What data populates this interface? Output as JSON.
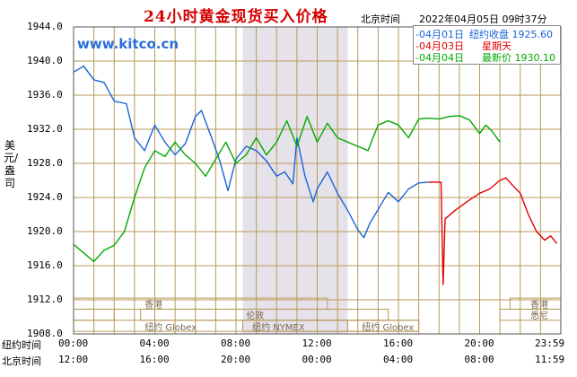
{
  "header": {
    "title": "24小时黄金现货买入价格",
    "beijing_label": "北京时间",
    "timestamp": "2022年04月05日 09时37分",
    "watermark": "www.kitco.cn"
  },
  "legend": [
    {
      "date": "-04月01日",
      "label": "纽约收盘 1925.60",
      "color": "#1a63d6"
    },
    {
      "date": "-04月03日",
      "label": "星期天",
      "color": "#e00000"
    },
    {
      "date": "-04月04日",
      "label": "最新价 1930.10",
      "color": "#00aa00"
    }
  ],
  "axis": {
    "ylabel": "美元/盎司",
    "y_ticks": [
      "1944.0",
      "1940.0",
      "1936.0",
      "1932.0",
      "1928.0",
      "1924.0",
      "1920.0",
      "1916.0",
      "1912.0",
      "1908.0"
    ],
    "x_row1_label": "纽约时间",
    "x_row2_label": "北京时间",
    "x_ticks_ny": [
      "00:00",
      "04:00",
      "08:00",
      "12:00",
      "16:00",
      "20:00",
      "23:59"
    ],
    "x_ticks_bj": [
      "12:00",
      "16:00",
      "20:00",
      "00:00",
      "04:00",
      "08:00",
      "11:59"
    ]
  },
  "markets": {
    "hongkong1": "香港",
    "hongkong2": "香港",
    "london": "伦敦",
    "ny_globex1": "纽约 Globex",
    "ny_nymex": "纽约 NYMEX",
    "ny_globex2": "纽约 Globex",
    "sydney": "悉尼"
  },
  "chart_data": {
    "type": "line",
    "xlabel": "纽约时间",
    "ylabel": "美元/盎司",
    "ylim": [
      1908,
      1944
    ],
    "x_unit": "hours (New York time)",
    "series": [
      {
        "name": "04月01日",
        "color": "#1a63d6",
        "points": [
          [
            0,
            1938.7
          ],
          [
            0.5,
            1939.4
          ],
          [
            1,
            1937.8
          ],
          [
            1.5,
            1937.5
          ],
          [
            2,
            1935.3
          ],
          [
            2.6,
            1935.0
          ],
          [
            3,
            1931.0
          ],
          [
            3.5,
            1929.5
          ],
          [
            4,
            1932.5
          ],
          [
            4.5,
            1930.5
          ],
          [
            5,
            1929.0
          ],
          [
            5.5,
            1930.3
          ],
          [
            6,
            1933.5
          ],
          [
            6.3,
            1934.2
          ],
          [
            6.8,
            1931.0
          ],
          [
            7.2,
            1928.3
          ],
          [
            7.6,
            1924.8
          ],
          [
            8,
            1928.5
          ],
          [
            8.5,
            1930.0
          ],
          [
            9,
            1929.5
          ],
          [
            9.5,
            1928.3
          ],
          [
            10,
            1926.5
          ],
          [
            10.4,
            1927.0
          ],
          [
            10.8,
            1925.6
          ],
          [
            11,
            1931.0
          ],
          [
            11.4,
            1926.5
          ],
          [
            11.8,
            1923.5
          ],
          [
            12,
            1925.0
          ],
          [
            12.5,
            1927.0
          ],
          [
            13,
            1924.5
          ],
          [
            13.5,
            1922.5
          ],
          [
            14,
            1920.2
          ],
          [
            14.3,
            1919.3
          ],
          [
            14.6,
            1921.0
          ],
          [
            15,
            1922.6
          ],
          [
            15.5,
            1924.6
          ],
          [
            16,
            1923.5
          ],
          [
            16.5,
            1925.0
          ],
          [
            17,
            1925.7
          ],
          [
            17.5,
            1925.8
          ]
        ]
      },
      {
        "name": "04月03日",
        "color": "#e00000",
        "points": [
          [
            17.5,
            1925.8
          ],
          [
            18.1,
            1925.8
          ],
          [
            18.2,
            1913.8
          ],
          [
            18.3,
            1921.5
          ],
          [
            18.8,
            1922.5
          ],
          [
            19.5,
            1923.7
          ],
          [
            20,
            1924.5
          ],
          [
            20.5,
            1925.0
          ],
          [
            21,
            1926.0
          ],
          [
            21.3,
            1926.3
          ],
          [
            21.6,
            1925.5
          ],
          [
            22,
            1924.5
          ],
          [
            22.4,
            1922.0
          ],
          [
            22.8,
            1920.0
          ],
          [
            23.2,
            1919.0
          ],
          [
            23.5,
            1919.5
          ],
          [
            23.8,
            1918.6
          ]
        ]
      },
      {
        "name": "04月04日",
        "color": "#00aa00",
        "points": [
          [
            0,
            1918.5
          ],
          [
            0.5,
            1917.5
          ],
          [
            1,
            1916.5
          ],
          [
            1.5,
            1917.8
          ],
          [
            2,
            1918.4
          ],
          [
            2.5,
            1920.0
          ],
          [
            3,
            1924.0
          ],
          [
            3.5,
            1927.5
          ],
          [
            4,
            1929.5
          ],
          [
            4.5,
            1928.8
          ],
          [
            5,
            1930.5
          ],
          [
            5.5,
            1929.0
          ],
          [
            6,
            1928.0
          ],
          [
            6.5,
            1926.5
          ],
          [
            7,
            1928.5
          ],
          [
            7.5,
            1930.5
          ],
          [
            8,
            1928.0
          ],
          [
            8.5,
            1929.0
          ],
          [
            9,
            1931.0
          ],
          [
            9.5,
            1929.0
          ],
          [
            10,
            1930.5
          ],
          [
            10.5,
            1933.0
          ],
          [
            11,
            1930.0
          ],
          [
            11.5,
            1933.5
          ],
          [
            12,
            1930.5
          ],
          [
            12.5,
            1932.7
          ],
          [
            13,
            1931.0
          ],
          [
            13.5,
            1930.5
          ],
          [
            14,
            1930.0
          ],
          [
            14.5,
            1929.5
          ],
          [
            15,
            1932.5
          ],
          [
            15.5,
            1933.0
          ],
          [
            16,
            1932.5
          ],
          [
            16.5,
            1931.0
          ],
          [
            17,
            1933.2
          ],
          [
            17.5,
            1933.3
          ],
          [
            18,
            1933.2
          ],
          [
            18.5,
            1933.5
          ],
          [
            19,
            1933.6
          ],
          [
            19.5,
            1933.1
          ],
          [
            20,
            1931.5
          ],
          [
            20.3,
            1932.5
          ],
          [
            20.6,
            1931.8
          ],
          [
            21,
            1930.5
          ]
        ]
      }
    ]
  }
}
